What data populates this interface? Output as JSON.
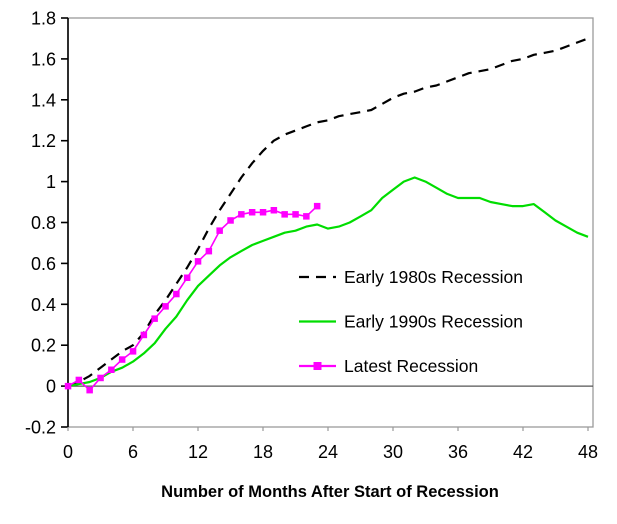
{
  "chart_data": {
    "type": "line",
    "title": "",
    "xlabel": "Number of Months After Start of Recession",
    "ylabel": "",
    "xlim": [
      0,
      48
    ],
    "ylim": [
      -0.2,
      1.8
    ],
    "grid": false,
    "legend_position": "inside-right",
    "x_ticks": [
      0,
      6,
      12,
      18,
      24,
      30,
      36,
      42,
      48
    ],
    "y_ticks": [
      {
        "v": -0.2,
        "label": "-0.2"
      },
      {
        "v": 0,
        "label": "0"
      },
      {
        "v": 0.2,
        "label": "0.2"
      },
      {
        "v": 0.4,
        "label": "0.4"
      },
      {
        "v": 0.6,
        "label": "0.6"
      },
      {
        "v": 0.8,
        "label": "0.8"
      },
      {
        "v": 1,
        "label": "1"
      },
      {
        "v": 1.2,
        "label": "1.2"
      },
      {
        "v": 1.4,
        "label": "1.4"
      },
      {
        "v": 1.6,
        "label": "1.6"
      },
      {
        "v": 1.8,
        "label": "1.8"
      }
    ],
    "series": [
      {
        "name": "Early 1980s Recession",
        "color": "#000000",
        "line_style": "dashed",
        "marker": "none",
        "x": [
          0,
          1,
          2,
          3,
          4,
          5,
          6,
          7,
          8,
          9,
          10,
          11,
          12,
          13,
          14,
          15,
          16,
          17,
          18,
          19,
          20,
          21,
          22,
          23,
          24,
          25,
          26,
          27,
          28,
          29,
          30,
          31,
          32,
          33,
          34,
          35,
          36,
          37,
          38,
          39,
          40,
          41,
          42,
          43,
          44,
          45,
          46,
          47,
          48
        ],
        "values": [
          0.0,
          0.02,
          0.05,
          0.09,
          0.13,
          0.17,
          0.2,
          0.26,
          0.35,
          0.42,
          0.5,
          0.58,
          0.67,
          0.77,
          0.86,
          0.94,
          1.02,
          1.09,
          1.15,
          1.2,
          1.23,
          1.25,
          1.27,
          1.29,
          1.3,
          1.32,
          1.33,
          1.34,
          1.35,
          1.38,
          1.41,
          1.43,
          1.44,
          1.46,
          1.47,
          1.49,
          1.51,
          1.53,
          1.54,
          1.55,
          1.57,
          1.59,
          1.6,
          1.62,
          1.63,
          1.64,
          1.66,
          1.68,
          1.7
        ]
      },
      {
        "name": "Early 1990s Recession",
        "color": "#00DD00",
        "line_style": "solid",
        "marker": "none",
        "x": [
          0,
          1,
          2,
          3,
          4,
          5,
          6,
          7,
          8,
          9,
          10,
          11,
          12,
          13,
          14,
          15,
          16,
          17,
          18,
          19,
          20,
          21,
          22,
          23,
          24,
          25,
          26,
          27,
          28,
          29,
          30,
          31,
          32,
          33,
          34,
          35,
          36,
          37,
          38,
          39,
          40,
          41,
          42,
          43,
          44,
          45,
          46,
          47,
          48
        ],
        "values": [
          0.0,
          0.01,
          0.02,
          0.04,
          0.07,
          0.09,
          0.12,
          0.16,
          0.21,
          0.28,
          0.34,
          0.42,
          0.49,
          0.54,
          0.59,
          0.63,
          0.66,
          0.69,
          0.71,
          0.73,
          0.75,
          0.76,
          0.78,
          0.79,
          0.77,
          0.78,
          0.8,
          0.83,
          0.86,
          0.92,
          0.96,
          1.0,
          1.02,
          1.0,
          0.97,
          0.94,
          0.92,
          0.92,
          0.92,
          0.9,
          0.89,
          0.88,
          0.88,
          0.89,
          0.85,
          0.81,
          0.78,
          0.75,
          0.73
        ]
      },
      {
        "name": "Latest Recession",
        "color": "#FF00FF",
        "line_style": "solid",
        "marker": "square",
        "x": [
          0,
          1,
          2,
          3,
          4,
          5,
          6,
          7,
          8,
          9,
          10,
          11,
          12,
          13,
          14,
          15,
          16,
          17,
          18,
          19,
          20,
          21,
          22,
          23
        ],
        "values": [
          0.0,
          0.03,
          -0.02,
          0.04,
          0.08,
          0.13,
          0.17,
          0.25,
          0.33,
          0.39,
          0.45,
          0.53,
          0.61,
          0.66,
          0.76,
          0.81,
          0.84,
          0.85,
          0.85,
          0.86,
          0.84,
          0.84,
          0.83,
          0.88
        ]
      }
    ]
  }
}
